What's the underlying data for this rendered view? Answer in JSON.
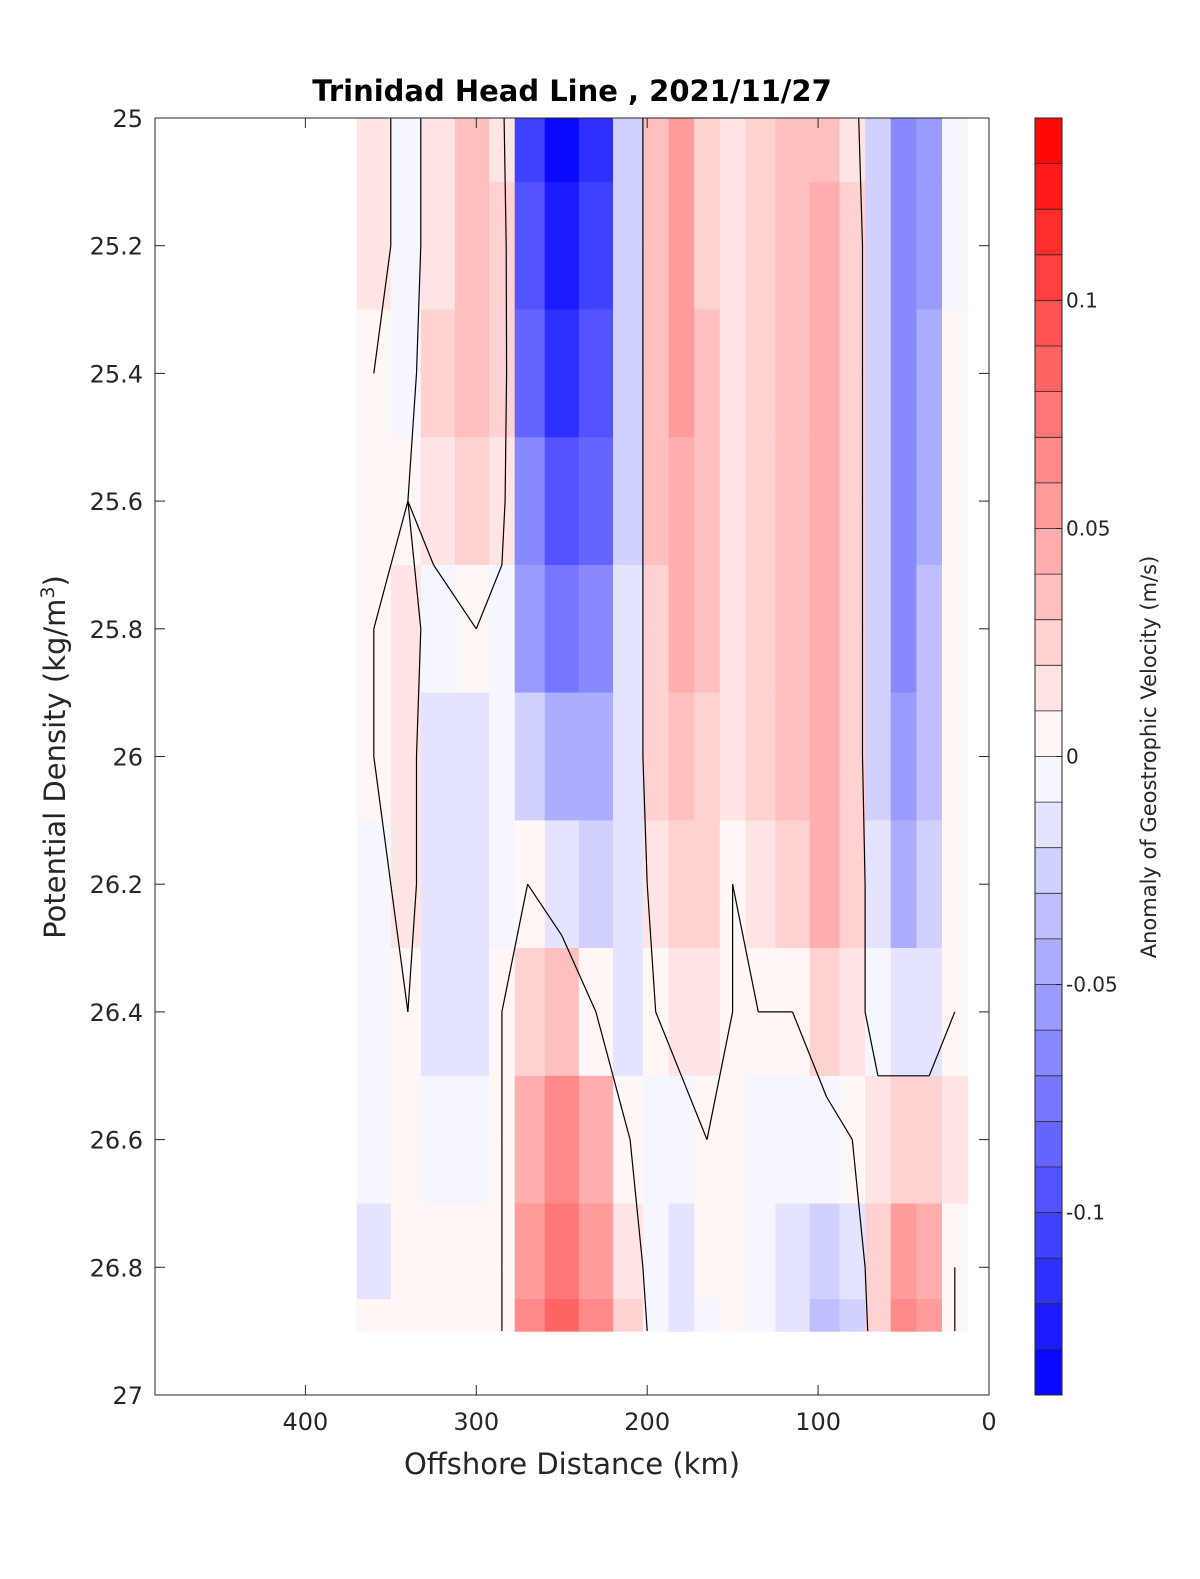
{
  "chart_data": {
    "type": "heatmap",
    "title": "Trinidad Head Line , 2021/11/27",
    "xlabel": "Offshore Distance (km)",
    "ylabel": "Potential Density (kg/m",
    "ylabel_sup": "3",
    "ylabel_close": ")",
    "colorbar_label": "Anomaly of Geostrophic Velocity (m/s)",
    "xlim": [
      488,
      0
    ],
    "ylim": [
      25,
      27
    ],
    "y_reversed": true,
    "x_reversed": true,
    "grid": false,
    "xticks": [
      400,
      300,
      200,
      100,
      0
    ],
    "xtick_labels": [
      "400",
      "300",
      "200",
      "100",
      "0"
    ],
    "yticks": [
      25,
      25.2,
      25.4,
      25.6,
      25.8,
      26,
      26.2,
      26.4,
      26.6,
      26.8,
      27
    ],
    "ytick_labels": [
      "25",
      "25.2",
      "25.4",
      "25.6",
      "25.8",
      "26",
      "26.2",
      "26.4",
      "26.6",
      "26.8",
      "27"
    ],
    "colorbar": {
      "clim": [
        -0.14,
        0.14
      ],
      "levels": 28,
      "ticks": [
        0.1,
        0.05,
        0,
        -0.05,
        -0.1
      ],
      "tick_labels": [
        "0.1",
        "0.05",
        "0",
        "-0.05",
        "-0.1"
      ],
      "color_max": "#ff0000",
      "color_zero": "#ffffff",
      "color_min": "#0000ff"
    },
    "sampled_field": {
      "x_km": [
        360,
        340,
        325,
        300,
        285,
        270,
        250,
        230,
        210,
        195,
        180,
        165,
        150,
        135,
        115,
        95,
        80,
        65,
        50,
        35,
        20
      ],
      "density": [
        25.0,
        25.2,
        25.4,
        25.6,
        25.8,
        26.0,
        26.2,
        26.4,
        26.6,
        26.8,
        26.9
      ],
      "velocity_m_s": [
        [
          0.01,
          -0.01,
          0.01,
          0.03,
          0.01,
          -0.11,
          -0.14,
          -0.12,
          -0.03,
          0.03,
          0.05,
          0.02,
          0.01,
          0.02,
          0.03,
          0.03,
          0.01,
          -0.03,
          -0.07,
          -0.06,
          -0.01
        ],
        [
          0.01,
          -0.01,
          0.01,
          0.03,
          0.02,
          -0.1,
          -0.13,
          -0.11,
          -0.03,
          0.03,
          0.05,
          0.02,
          0.01,
          0.02,
          0.03,
          0.04,
          0.02,
          -0.03,
          -0.07,
          -0.06,
          -0.01
        ],
        [
          0.0,
          -0.01,
          0.02,
          0.03,
          0.02,
          -0.09,
          -0.12,
          -0.1,
          -0.03,
          0.03,
          0.05,
          0.03,
          0.01,
          0.02,
          0.03,
          0.04,
          0.02,
          -0.03,
          -0.07,
          -0.05,
          0.0
        ],
        [
          0.0,
          0.0,
          0.01,
          0.02,
          0.01,
          -0.07,
          -0.1,
          -0.09,
          -0.03,
          0.03,
          0.04,
          0.03,
          0.01,
          0.02,
          0.03,
          0.04,
          0.02,
          -0.03,
          -0.07,
          -0.05,
          0.0
        ],
        [
          0.0,
          0.01,
          -0.01,
          0.0,
          -0.01,
          -0.06,
          -0.08,
          -0.07,
          -0.02,
          0.02,
          0.04,
          0.03,
          0.01,
          0.02,
          0.03,
          0.04,
          0.02,
          -0.03,
          -0.07,
          -0.04,
          0.0
        ],
        [
          0.0,
          0.01,
          -0.02,
          -0.02,
          -0.01,
          -0.03,
          -0.05,
          -0.05,
          -0.02,
          0.02,
          0.03,
          0.02,
          0.01,
          0.02,
          0.03,
          0.04,
          0.02,
          -0.03,
          -0.06,
          -0.04,
          0.0
        ],
        [
          -0.01,
          0.01,
          -0.02,
          -0.02,
          -0.01,
          0.0,
          -0.02,
          -0.03,
          -0.02,
          0.01,
          0.02,
          0.02,
          0.0,
          0.01,
          0.02,
          0.04,
          0.02,
          -0.02,
          -0.05,
          -0.03,
          0.0
        ],
        [
          -0.01,
          0.0,
          -0.02,
          -0.02,
          0.0,
          0.02,
          0.03,
          0.0,
          -0.02,
          0.0,
          0.01,
          0.01,
          0.0,
          0.0,
          0.0,
          0.02,
          0.01,
          -0.01,
          -0.02,
          -0.02,
          0.0
        ],
        [
          -0.01,
          0.0,
          -0.01,
          -0.01,
          0.0,
          0.04,
          0.06,
          0.04,
          0.0,
          -0.01,
          -0.01,
          0.0,
          0.0,
          -0.01,
          -0.01,
          -0.01,
          0.0,
          0.01,
          0.02,
          0.02,
          0.01
        ],
        [
          -0.02,
          0.0,
          0.0,
          0.0,
          0.0,
          0.05,
          0.07,
          0.05,
          0.01,
          -0.01,
          -0.02,
          0.0,
          0.0,
          -0.01,
          -0.02,
          -0.03,
          -0.02,
          0.02,
          0.05,
          0.04,
          0.0
        ],
        [
          0.0,
          0.0,
          0.0,
          0.0,
          0.0,
          0.06,
          0.08,
          0.06,
          0.02,
          -0.01,
          -0.02,
          -0.01,
          0.0,
          -0.01,
          -0.02,
          -0.04,
          -0.03,
          0.02,
          0.06,
          0.05,
          0.0
        ]
      ]
    }
  }
}
